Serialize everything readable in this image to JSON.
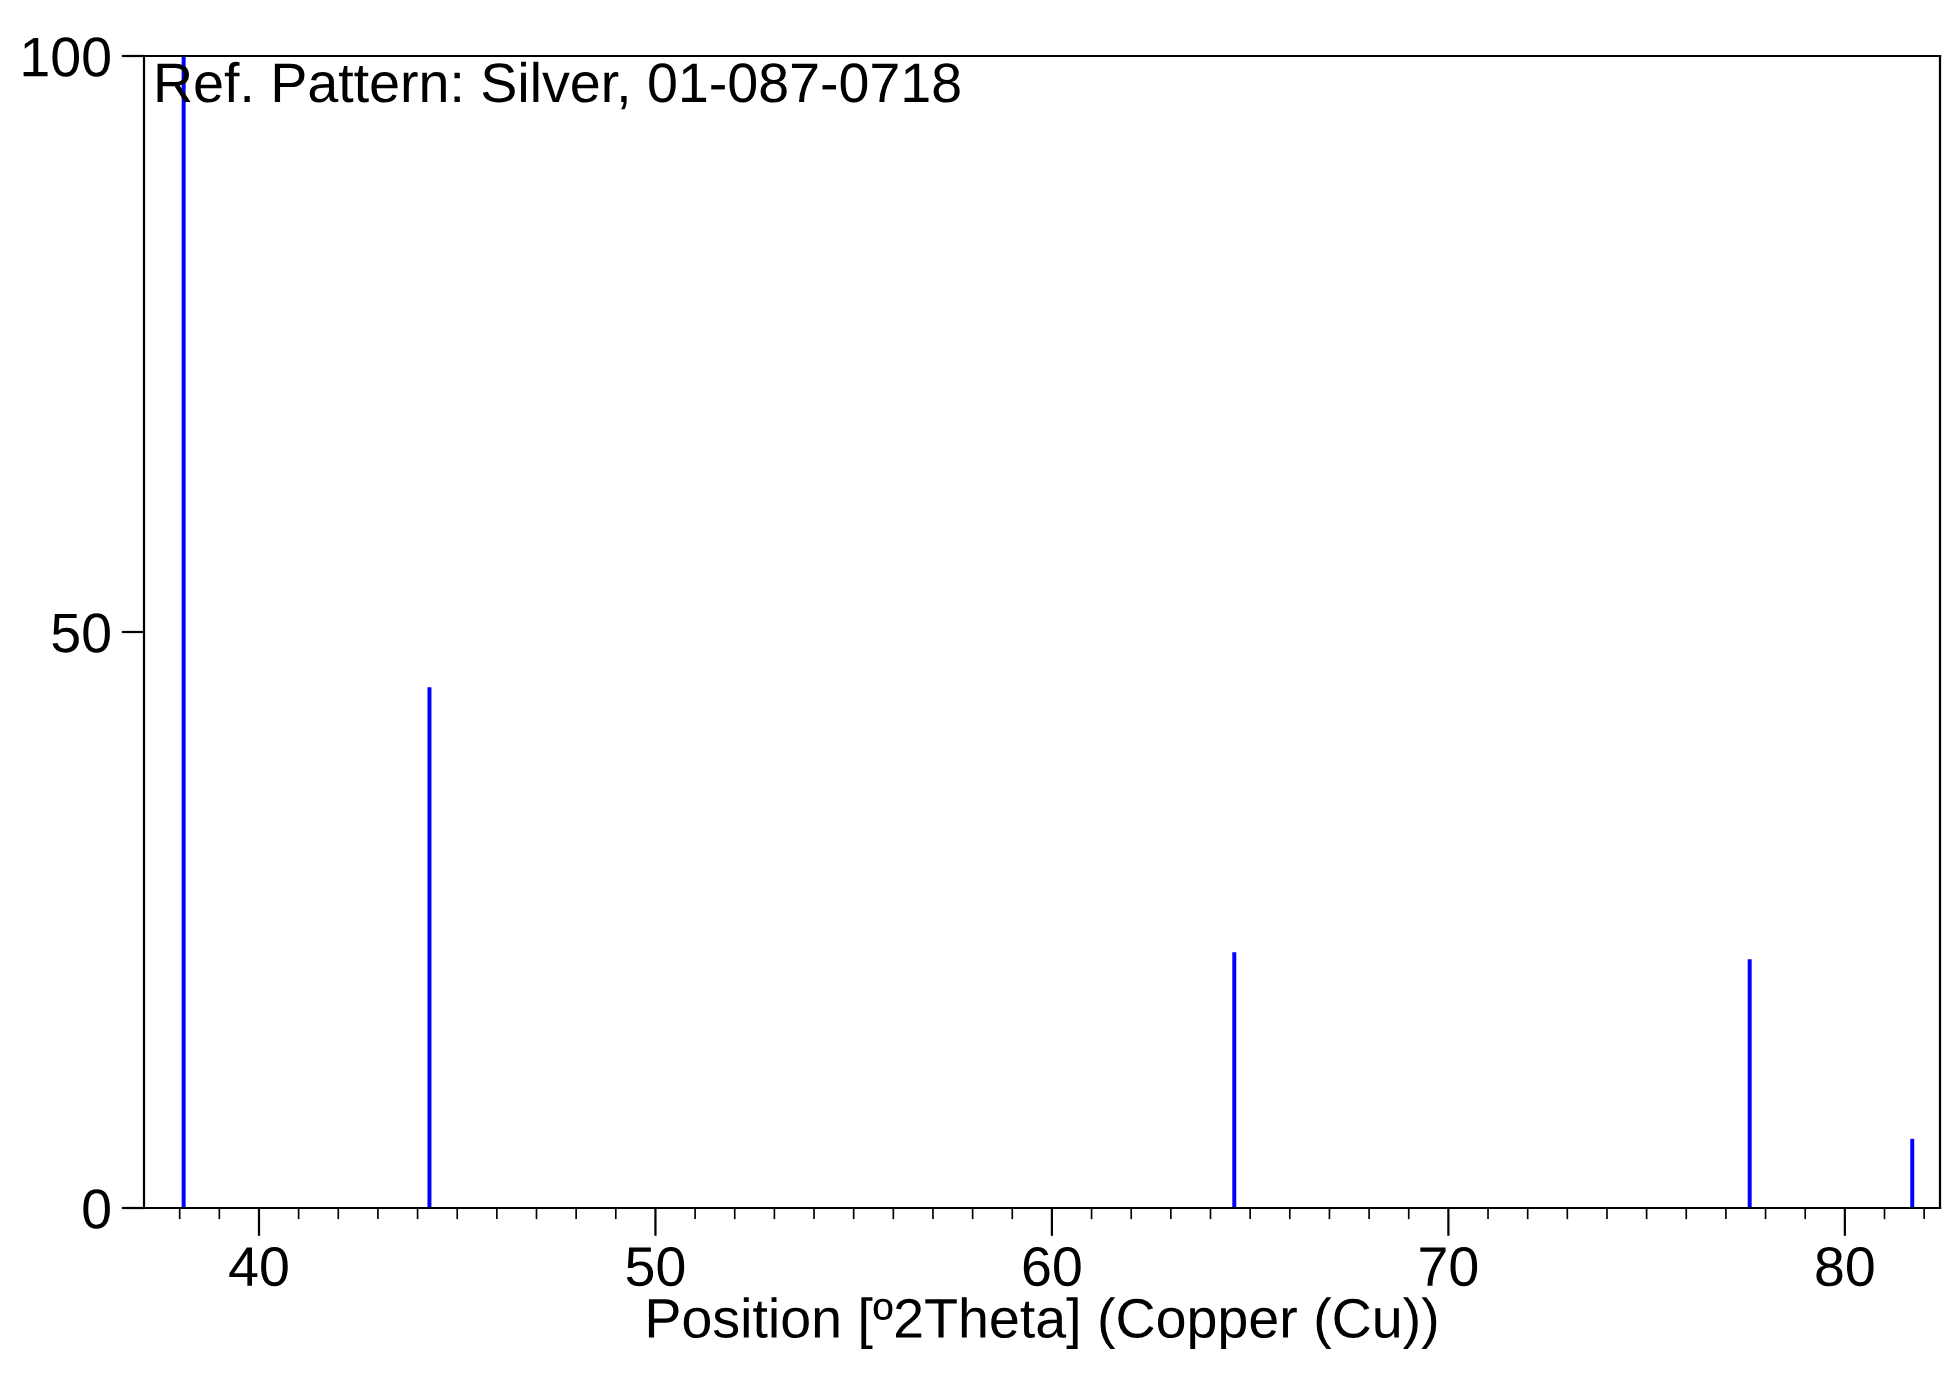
{
  "chart_data": {
    "type": "bar",
    "xlabel": "Position [º2Theta] (Copper (Cu))",
    "x": [
      38.1,
      44.3,
      64.6,
      77.6,
      81.7
    ],
    "values": [
      100,
      45.2,
      22.2,
      21.6,
      6.0
    ],
    "color": "#0000ff",
    "xlim": [
      37.1,
      82.4
    ],
    "xticks": [
      40,
      50,
      60,
      70,
      80
    ],
    "ylim": [
      0,
      100
    ],
    "yticks": [
      0,
      50,
      100
    ],
    "grid": false,
    "legend": false,
    "annotations": [
      "Ref. Pattern: Silver, 01-087-0718"
    ]
  }
}
